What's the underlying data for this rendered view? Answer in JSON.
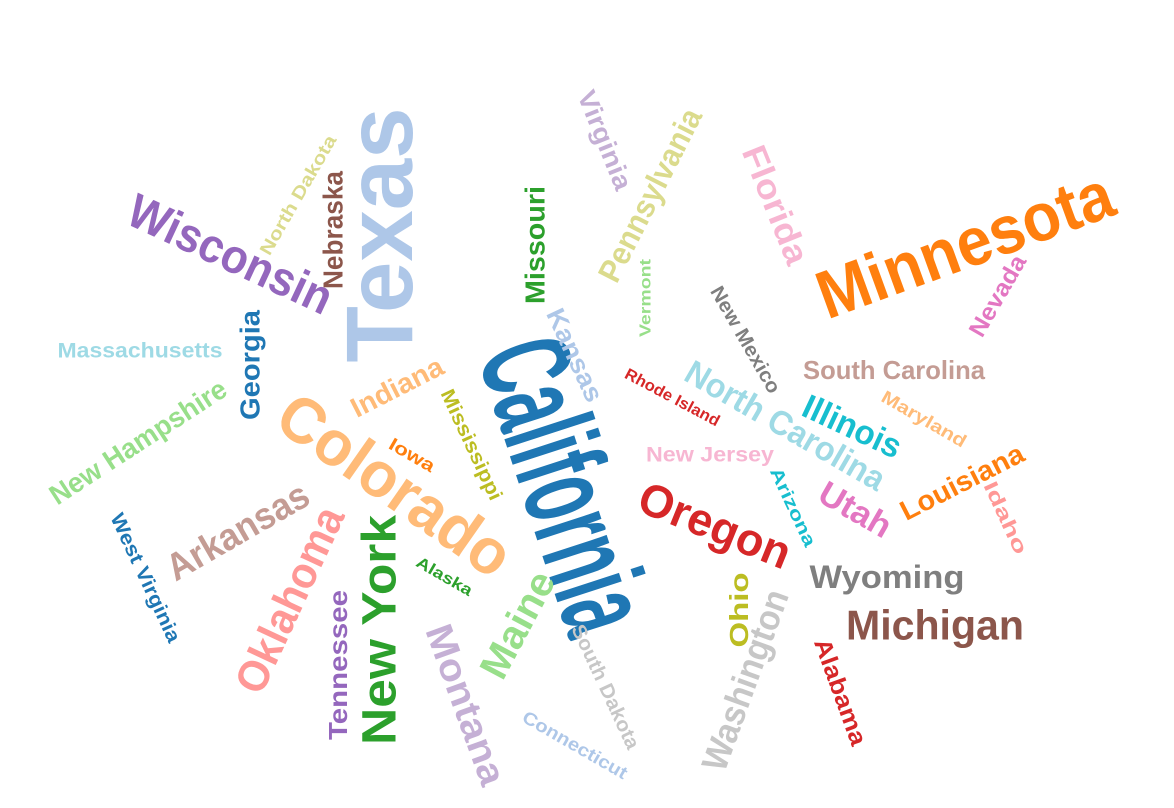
{
  "chart_data": {
    "type": "word_cloud",
    "words": [
      {
        "text": "California",
        "color": "#1f77b4"
      },
      {
        "text": "Texas",
        "color": "#aec7e8"
      },
      {
        "text": "Minnesota",
        "color": "#ff7f0e"
      },
      {
        "text": "Colorado",
        "color": "#ffbb78"
      },
      {
        "text": "Wisconsin",
        "color": "#9467bd"
      },
      {
        "text": "New York",
        "color": "#2ca02c"
      },
      {
        "text": "Oregon",
        "color": "#d62728"
      },
      {
        "text": "Oklahoma",
        "color": "#ff9896"
      },
      {
        "text": "Michigan",
        "color": "#8c564b"
      },
      {
        "text": "Washington",
        "color": "#c7c7c7"
      },
      {
        "text": "Montana",
        "color": "#c5b0d5"
      },
      {
        "text": "Maine",
        "color": "#98df8a"
      },
      {
        "text": "Arkansas",
        "color": "#c49c94"
      },
      {
        "text": "North Carolina",
        "color": "#9edae5"
      },
      {
        "text": "Pennsylvania",
        "color": "#dbdb8d"
      },
      {
        "text": "Florida",
        "color": "#f7b6d2"
      },
      {
        "text": "Wyoming",
        "color": "#7f7f7f"
      },
      {
        "text": "Illinois",
        "color": "#17becf"
      },
      {
        "text": "Utah",
        "color": "#e377c2"
      },
      {
        "text": "Louisiana",
        "color": "#ff7f0e"
      },
      {
        "text": "New Hampshire",
        "color": "#98df8a"
      },
      {
        "text": "Tennessee",
        "color": "#9467bd"
      },
      {
        "text": "Georgia",
        "color": "#1f77b4"
      },
      {
        "text": "Nebraska",
        "color": "#8c564b"
      },
      {
        "text": "Missouri",
        "color": "#2ca02c"
      },
      {
        "text": "Kansas",
        "color": "#aec7e8"
      },
      {
        "text": "South Carolina",
        "color": "#c49c94"
      },
      {
        "text": "Virginia",
        "color": "#c5b0d5"
      },
      {
        "text": "Indiana",
        "color": "#ffbb78"
      },
      {
        "text": "Nevada",
        "color": "#e377c2"
      },
      {
        "text": "Alabama",
        "color": "#d62728"
      },
      {
        "text": "Ohio",
        "color": "#bcbd22"
      },
      {
        "text": "New Mexico",
        "color": "#7f7f7f"
      },
      {
        "text": "Mississippi",
        "color": "#bcbd22"
      },
      {
        "text": "South Dakota",
        "color": "#c7c7c7"
      },
      {
        "text": "West Virginia",
        "color": "#1f77b4"
      },
      {
        "text": "North Dakota",
        "color": "#dbdb8d"
      },
      {
        "text": "Massachusetts",
        "color": "#9edae5"
      },
      {
        "text": "New Jersey",
        "color": "#f7b6d2"
      },
      {
        "text": "Idaho",
        "color": "#ff9896"
      },
      {
        "text": "Maryland",
        "color": "#ffbb78"
      },
      {
        "text": "Connecticut",
        "color": "#aec7e8"
      },
      {
        "text": "Arizona",
        "color": "#17becf"
      },
      {
        "text": "Iowa",
        "color": "#ff7f0e"
      },
      {
        "text": "Rhode Island",
        "color": "#d62728"
      },
      {
        "text": "Alaska",
        "color": "#2ca02c"
      },
      {
        "text": "Vermont",
        "color": "#98df8a"
      }
    ]
  }
}
